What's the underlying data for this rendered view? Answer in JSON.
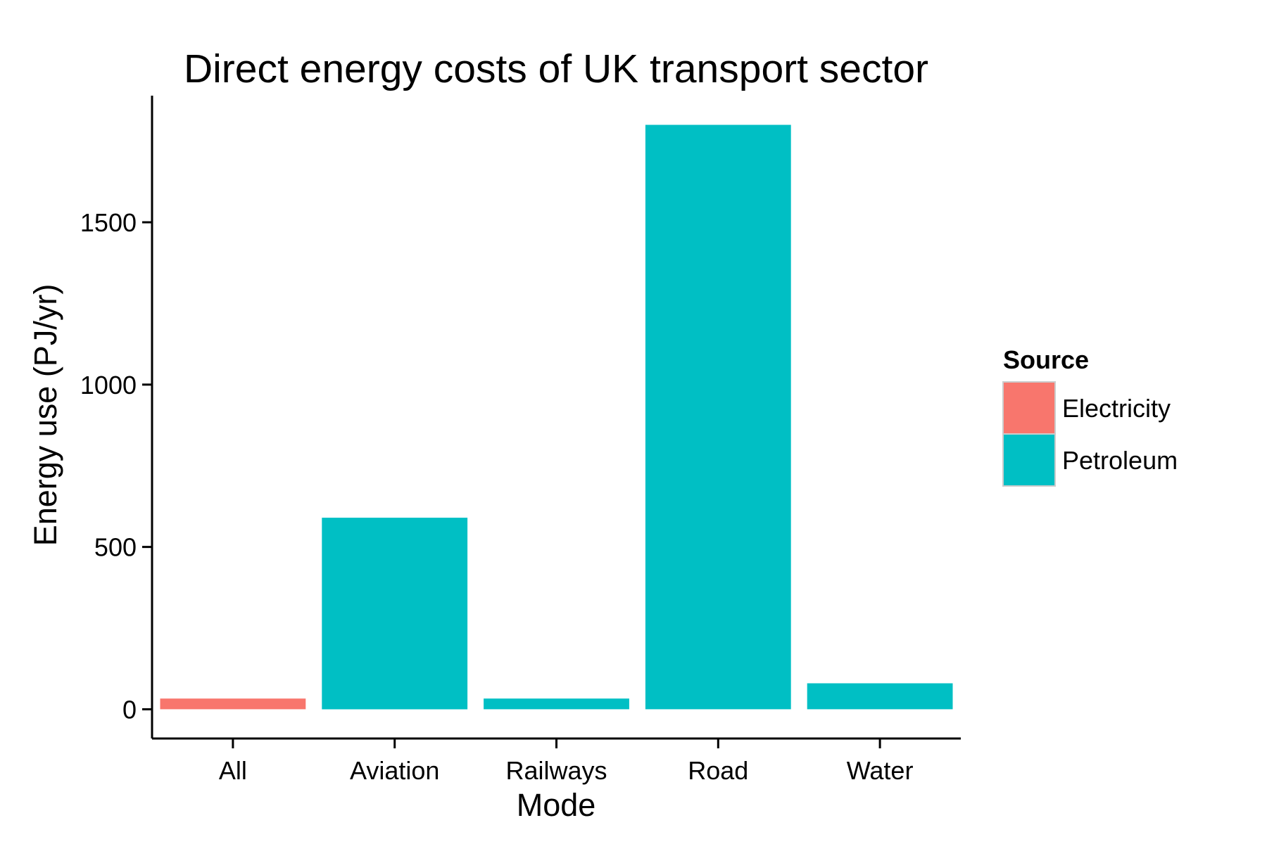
{
  "chart_data": {
    "type": "bar",
    "title": "Direct energy costs of UK transport sector",
    "xlabel": "Mode",
    "ylabel": "Energy use (PJ/yr)",
    "categories": [
      "All",
      "Aviation",
      "Railways",
      "Road",
      "Water"
    ],
    "values": [
      33,
      590,
      33,
      1800,
      80
    ],
    "fill_source": [
      "Electricity",
      "Petroleum",
      "Petroleum",
      "Petroleum",
      "Petroleum"
    ],
    "yticks": [
      0,
      500,
      1000,
      1500
    ],
    "ylim": [
      -90,
      1890
    ],
    "grid": false,
    "legend": {
      "title": "Source",
      "placement": "right",
      "entries": [
        {
          "label": "Electricity",
          "color": "#F8766D"
        },
        {
          "label": "Petroleum",
          "color": "#00BFC4"
        }
      ]
    }
  }
}
